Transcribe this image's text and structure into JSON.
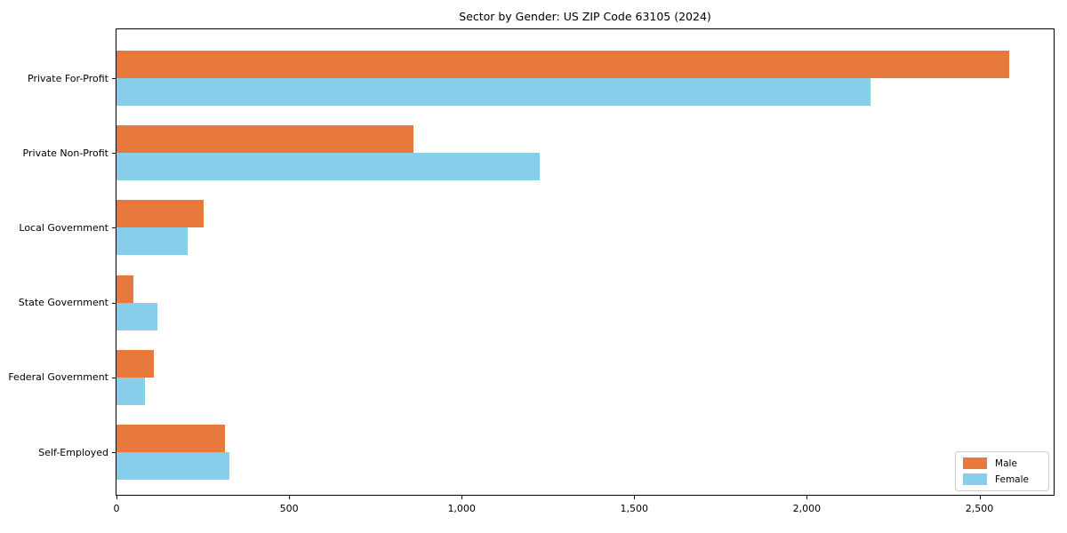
{
  "title": "Sector by Gender: US ZIP Code 63105 (2024)",
  "chart_data": {
    "type": "bar",
    "orientation": "horizontal",
    "title": "Sector by Gender: US ZIP Code 63105 (2024)",
    "xlabel": "",
    "ylabel": "",
    "categories": [
      "Private For-Profit",
      "Private Non-Profit",
      "Local Government",
      "State Government",
      "Federal Government",
      "Self-Employed"
    ],
    "series": [
      {
        "name": "Male",
        "color": "#e8793d",
        "values": [
          2586,
          860,
          252,
          50,
          108,
          314
        ]
      },
      {
        "name": "Female",
        "color": "#87ceeb",
        "values": [
          2184,
          1226,
          206,
          118,
          83,
          327
        ]
      }
    ],
    "xlim": [
      0,
      2715
    ],
    "xticks": [
      0,
      500,
      1000,
      1500,
      2000,
      2500
    ],
    "xtick_labels": [
      "0",
      "500",
      "1,000",
      "1,500",
      "2,000",
      "2,500"
    ],
    "grid": false,
    "legend_position": "lower right",
    "colors": {
      "male": "#e8793d",
      "female": "#87ceeb",
      "spine": "#000000",
      "background": "#ffffff"
    }
  }
}
